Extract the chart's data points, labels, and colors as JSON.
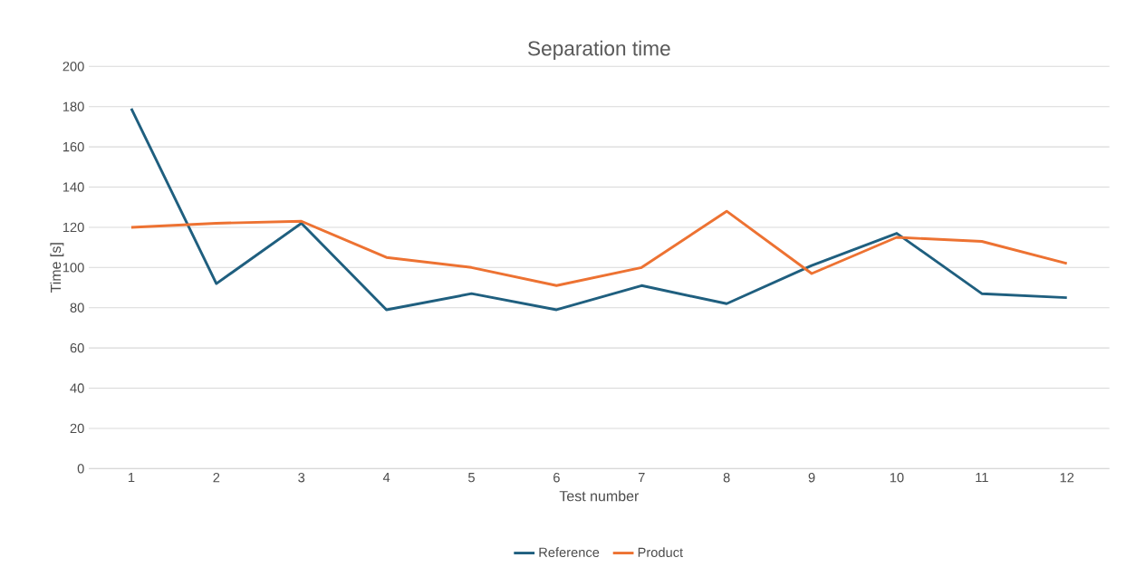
{
  "chart_data": {
    "type": "line",
    "title": "Separation time",
    "xlabel": "Test number",
    "ylabel": "Time [s]",
    "categories": [
      "1",
      "2",
      "3",
      "4",
      "5",
      "6",
      "7",
      "8",
      "9",
      "10",
      "11",
      "12"
    ],
    "series": [
      {
        "name": "Reference",
        "color": "#1f5f7f",
        "values": [
          179,
          92,
          122,
          79,
          87,
          79,
          91,
          82,
          101,
          117,
          87,
          85
        ]
      },
      {
        "name": "Product",
        "color": "#ed7232",
        "values": [
          120,
          122,
          123,
          105,
          100,
          91,
          100,
          128,
          97,
          115,
          113,
          102
        ]
      }
    ],
    "ylim": [
      0,
      200
    ],
    "yticks": [
      0,
      20,
      40,
      60,
      80,
      100,
      120,
      140,
      160,
      180,
      200
    ],
    "grid": "y",
    "legend": "bottom",
    "marker": "none",
    "line_style": "solid"
  }
}
